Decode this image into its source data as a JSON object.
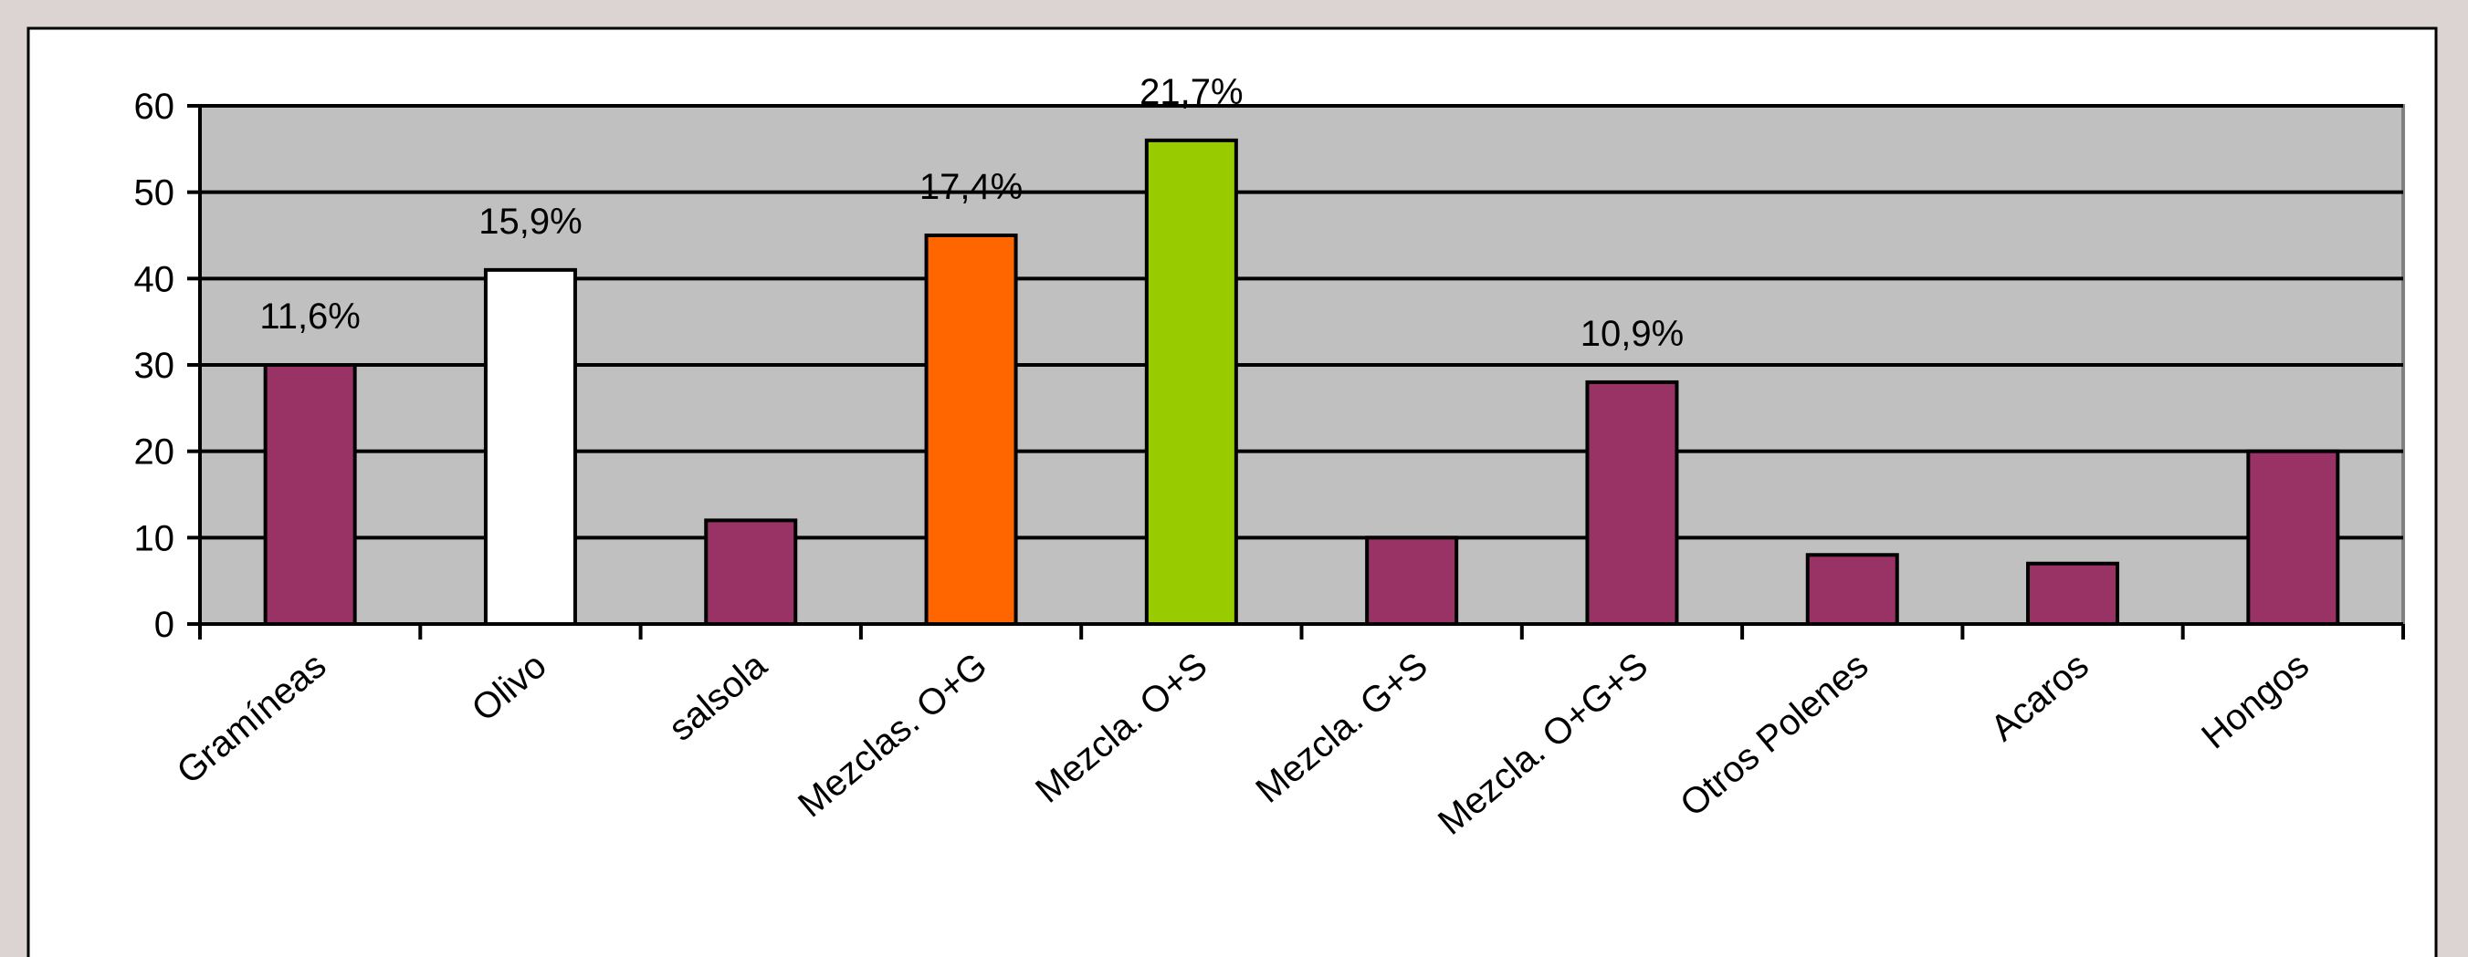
{
  "chart_data": {
    "type": "bar",
    "categories": [
      "Gramíneas",
      "Olivo",
      "salsola",
      "Mezclas. O+G",
      "Mezcla. O+S",
      "Mezcla. G+S",
      "Mezcla. O+G+S",
      "Otros Polenes",
      "Acaros",
      "Hongos"
    ],
    "values": [
      30,
      41,
      12,
      45,
      56,
      10,
      28,
      8,
      7,
      20
    ],
    "colors": [
      "#993366",
      "#ffffff",
      "#993366",
      "#ff6600",
      "#99cc00",
      "#993366",
      "#993366",
      "#993366",
      "#993366",
      "#993366"
    ],
    "annotations": [
      "11,6%",
      "15,9%",
      null,
      "17,4%",
      "21,7%",
      null,
      "10,9%",
      null,
      null,
      null
    ],
    "ylim": [
      0,
      60
    ],
    "yticks": [
      0,
      10,
      20,
      30,
      40,
      50,
      60
    ],
    "grid": true,
    "plot_background": "#c0c0c0"
  }
}
